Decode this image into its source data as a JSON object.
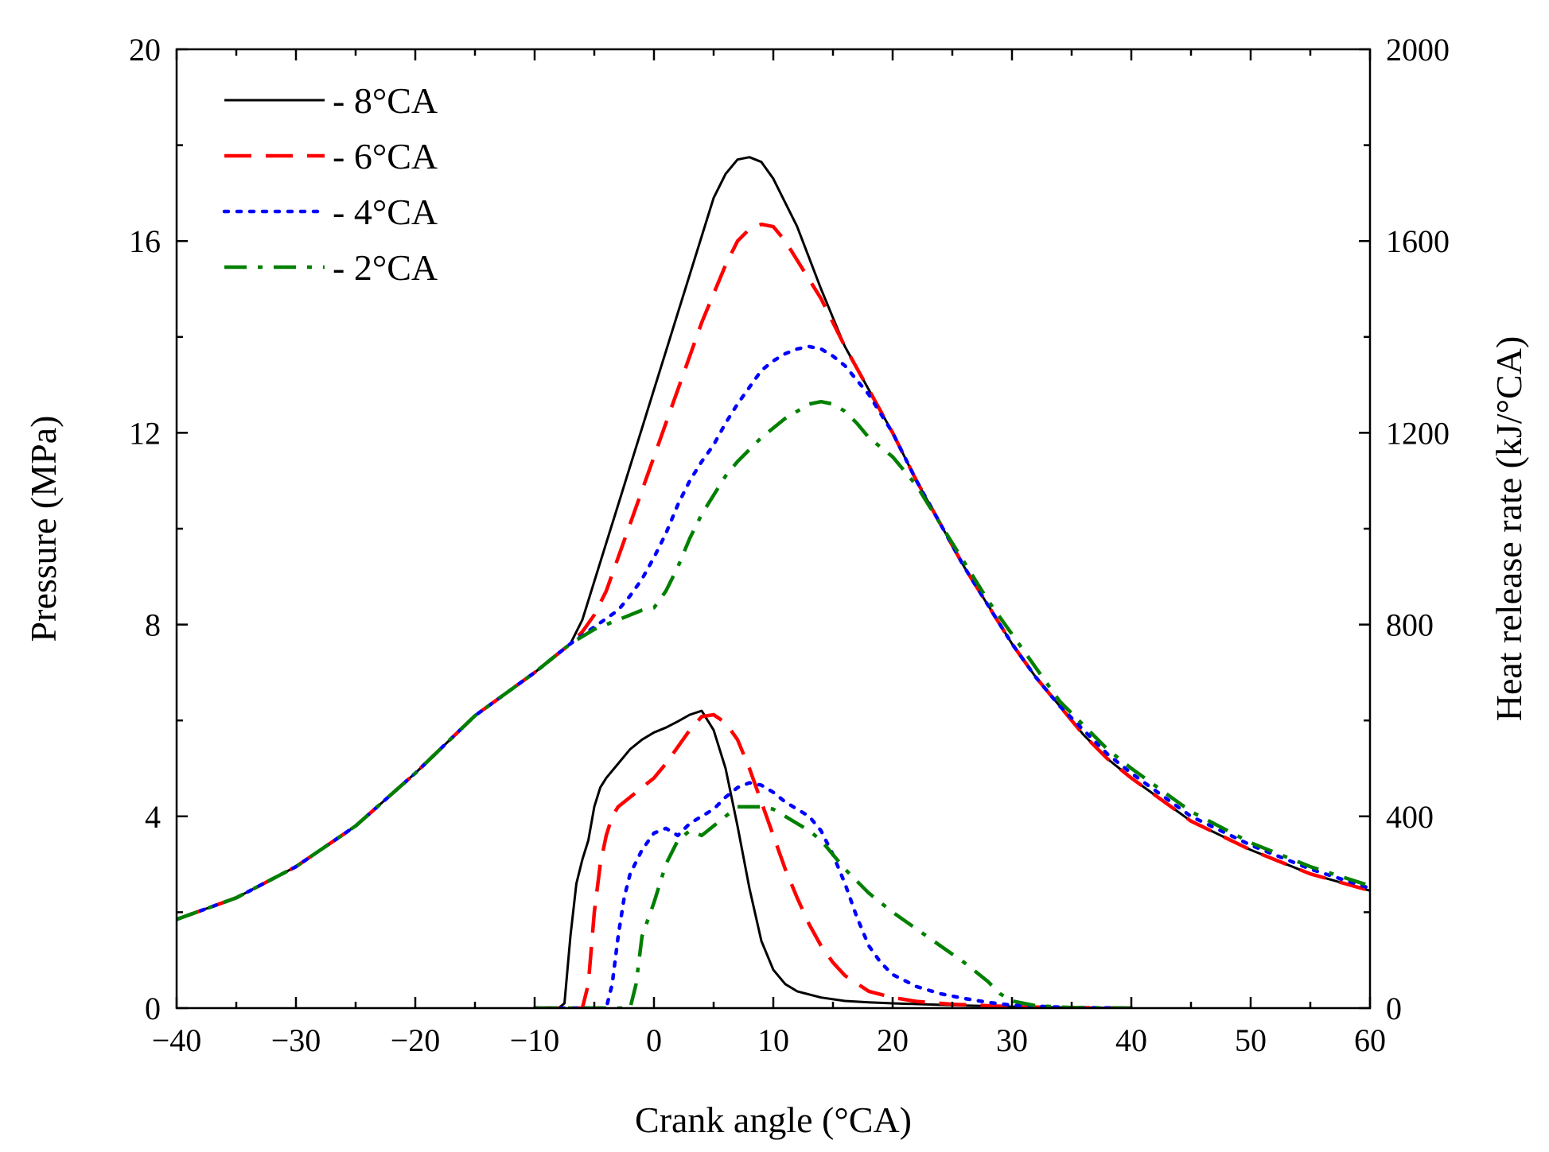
{
  "chart_data": {
    "type": "line",
    "title": "",
    "xlabel": "Crank angle (°CA)",
    "ylabel_left": "Pressure (MPa)",
    "ylabel_right": "Heat release rate (kJ/°CA)",
    "xlim": [
      -40,
      60
    ],
    "ylim_left": [
      0,
      20
    ],
    "ylim_right": [
      0,
      2000
    ],
    "x_ticks": [
      -40,
      -30,
      -20,
      -10,
      0,
      10,
      20,
      30,
      40,
      50,
      60
    ],
    "x_tick_labels": [
      "−40",
      "−30",
      "−20",
      "−10",
      "0",
      "10",
      "20",
      "30",
      "40",
      "50",
      "60"
    ],
    "y_left_ticks": [
      0,
      4,
      8,
      12,
      16,
      20
    ],
    "y_left_tick_labels": [
      "0",
      "4",
      "8",
      "12",
      "16",
      "20"
    ],
    "y_right_ticks": [
      0,
      400,
      800,
      1200,
      1600,
      2000
    ],
    "y_right_tick_labels": [
      "0",
      "400",
      "800",
      "1200",
      "1600",
      "2000"
    ],
    "grid": false,
    "legend_position": "top-left",
    "series": [
      {
        "name": "- 8°CA",
        "color": "#000000",
        "style": "solid",
        "pressure": [
          [
            -40,
            1.85
          ],
          [
            -35,
            2.3
          ],
          [
            -30,
            2.95
          ],
          [
            -25,
            3.8
          ],
          [
            -20,
            4.9
          ],
          [
            -15,
            6.1
          ],
          [
            -10,
            7.0
          ],
          [
            -7,
            7.6
          ],
          [
            -6,
            8.1
          ],
          [
            -5,
            8.9
          ],
          [
            -4,
            9.7
          ],
          [
            -3,
            10.5
          ],
          [
            -2,
            11.3
          ],
          [
            -1,
            12.1
          ],
          [
            0,
            12.9
          ],
          [
            1,
            13.7
          ],
          [
            2,
            14.5
          ],
          [
            3,
            15.3
          ],
          [
            4,
            16.1
          ],
          [
            5,
            16.9
          ],
          [
            6,
            17.4
          ],
          [
            7,
            17.7
          ],
          [
            8,
            17.75
          ],
          [
            9,
            17.65
          ],
          [
            10,
            17.3
          ],
          [
            12,
            16.3
          ],
          [
            14,
            15.0
          ],
          [
            16,
            13.8
          ],
          [
            18,
            12.9
          ],
          [
            20,
            12.0
          ],
          [
            22,
            11.0
          ],
          [
            24,
            10.1
          ],
          [
            26,
            9.2
          ],
          [
            28,
            8.4
          ],
          [
            30,
            7.6
          ],
          [
            32,
            6.9
          ],
          [
            34,
            6.3
          ],
          [
            36,
            5.7
          ],
          [
            38,
            5.2
          ],
          [
            40,
            4.8
          ],
          [
            45,
            3.9
          ],
          [
            50,
            3.3
          ],
          [
            55,
            2.8
          ],
          [
            60,
            2.45
          ]
        ],
        "heat_release": [
          [
            -8,
            0
          ],
          [
            -7.5,
            10
          ],
          [
            -7,
            150
          ],
          [
            -6.5,
            260
          ],
          [
            -6,
            310
          ],
          [
            -5.5,
            350
          ],
          [
            -5,
            420
          ],
          [
            -4.5,
            460
          ],
          [
            -4,
            480
          ],
          [
            -3,
            510
          ],
          [
            -2,
            540
          ],
          [
            -1,
            560
          ],
          [
            0,
            575
          ],
          [
            1,
            585
          ],
          [
            2,
            598
          ],
          [
            3,
            612
          ],
          [
            4,
            620
          ],
          [
            5,
            580
          ],
          [
            6,
            500
          ],
          [
            7,
            380
          ],
          [
            8,
            250
          ],
          [
            9,
            140
          ],
          [
            10,
            80
          ],
          [
            11,
            50
          ],
          [
            12,
            35
          ],
          [
            14,
            22
          ],
          [
            16,
            15
          ],
          [
            18,
            12
          ],
          [
            20,
            10
          ],
          [
            25,
            6
          ],
          [
            30,
            3
          ],
          [
            35,
            1
          ],
          [
            40,
            0
          ]
        ]
      },
      {
        "name": "- 6°CA",
        "color": "#ff0000",
        "style": "dashed",
        "pressure": [
          [
            -40,
            1.85
          ],
          [
            -35,
            2.3
          ],
          [
            -30,
            2.95
          ],
          [
            -25,
            3.8
          ],
          [
            -20,
            4.9
          ],
          [
            -15,
            6.1
          ],
          [
            -10,
            7.0
          ],
          [
            -7,
            7.6
          ],
          [
            -6,
            7.85
          ],
          [
            -5,
            8.2
          ],
          [
            -4,
            8.7
          ],
          [
            -3,
            9.4
          ],
          [
            -2,
            10.1
          ],
          [
            -1,
            10.8
          ],
          [
            0,
            11.5
          ],
          [
            1,
            12.2
          ],
          [
            2,
            12.9
          ],
          [
            3,
            13.6
          ],
          [
            4,
            14.3
          ],
          [
            5,
            14.9
          ],
          [
            6,
            15.5
          ],
          [
            7,
            16.0
          ],
          [
            8,
            16.25
          ],
          [
            9,
            16.35
          ],
          [
            10,
            16.3
          ],
          [
            11,
            16.0
          ],
          [
            12,
            15.6
          ],
          [
            14,
            14.8
          ],
          [
            16,
            13.8
          ],
          [
            18,
            12.9
          ],
          [
            20,
            12.0
          ],
          [
            22,
            11.0
          ],
          [
            24,
            10.1
          ],
          [
            26,
            9.2
          ],
          [
            28,
            8.4
          ],
          [
            30,
            7.6
          ],
          [
            32,
            6.9
          ],
          [
            34,
            6.3
          ],
          [
            36,
            5.7
          ],
          [
            38,
            5.2
          ],
          [
            40,
            4.8
          ],
          [
            45,
            3.9
          ],
          [
            50,
            3.3
          ],
          [
            55,
            2.8
          ],
          [
            60,
            2.45
          ]
        ],
        "heat_release": [
          [
            -10,
            0
          ],
          [
            -6,
            0
          ],
          [
            -5.5,
            50
          ],
          [
            -5,
            200
          ],
          [
            -4.5,
            300
          ],
          [
            -4,
            360
          ],
          [
            -3.5,
            400
          ],
          [
            -3,
            420
          ],
          [
            -2,
            440
          ],
          [
            -1,
            460
          ],
          [
            0,
            480
          ],
          [
            1,
            510
          ],
          [
            2,
            545
          ],
          [
            3,
            580
          ],
          [
            4,
            608
          ],
          [
            5,
            612
          ],
          [
            6,
            595
          ],
          [
            7,
            560
          ],
          [
            8,
            500
          ],
          [
            9,
            430
          ],
          [
            10,
            360
          ],
          [
            11,
            290
          ],
          [
            12,
            230
          ],
          [
            13,
            175
          ],
          [
            14,
            130
          ],
          [
            15,
            95
          ],
          [
            16,
            68
          ],
          [
            18,
            35
          ],
          [
            20,
            22
          ],
          [
            22,
            14
          ],
          [
            25,
            8
          ],
          [
            30,
            3
          ],
          [
            35,
            1
          ],
          [
            40,
            0
          ]
        ]
      },
      {
        "name": "- 4°CA",
        "color": "#0000ff",
        "style": "dotted",
        "pressure": [
          [
            -40,
            1.85
          ],
          [
            -35,
            2.3
          ],
          [
            -30,
            2.95
          ],
          [
            -25,
            3.8
          ],
          [
            -20,
            4.9
          ],
          [
            -15,
            6.1
          ],
          [
            -10,
            7.0
          ],
          [
            -7,
            7.6
          ],
          [
            -5,
            7.95
          ],
          [
            -3,
            8.3
          ],
          [
            -2,
            8.6
          ],
          [
            -1,
            8.95
          ],
          [
            0,
            9.4
          ],
          [
            1,
            9.9
          ],
          [
            2,
            10.5
          ],
          [
            3,
            11.0
          ],
          [
            4,
            11.4
          ],
          [
            5,
            11.75
          ],
          [
            6,
            12.2
          ],
          [
            7,
            12.6
          ],
          [
            8,
            12.95
          ],
          [
            9,
            13.3
          ],
          [
            10,
            13.5
          ],
          [
            11,
            13.65
          ],
          [
            12,
            13.75
          ],
          [
            13,
            13.8
          ],
          [
            14,
            13.75
          ],
          [
            15,
            13.6
          ],
          [
            16,
            13.4
          ],
          [
            17,
            13.1
          ],
          [
            18,
            12.8
          ],
          [
            20,
            12.0
          ],
          [
            22,
            11.0
          ],
          [
            24,
            10.1
          ],
          [
            26,
            9.2
          ],
          [
            28,
            8.4
          ],
          [
            30,
            7.6
          ],
          [
            32,
            6.9
          ],
          [
            34,
            6.3
          ],
          [
            36,
            5.8
          ],
          [
            38,
            5.3
          ],
          [
            40,
            4.9
          ],
          [
            45,
            4.0
          ],
          [
            50,
            3.4
          ],
          [
            55,
            2.9
          ],
          [
            60,
            2.5
          ]
        ],
        "heat_release": [
          [
            -10,
            0
          ],
          [
            -4,
            0
          ],
          [
            -3.5,
            50
          ],
          [
            -3,
            150
          ],
          [
            -2.5,
            230
          ],
          [
            -2,
            280
          ],
          [
            -1,
            330
          ],
          [
            0,
            365
          ],
          [
            1,
            375
          ],
          [
            2,
            360
          ],
          [
            3,
            385
          ],
          [
            4,
            400
          ],
          [
            5,
            415
          ],
          [
            6,
            440
          ],
          [
            7,
            460
          ],
          [
            8,
            470
          ],
          [
            9,
            465
          ],
          [
            10,
            450
          ],
          [
            11,
            430
          ],
          [
            12,
            415
          ],
          [
            13,
            400
          ],
          [
            14,
            370
          ],
          [
            15,
            320
          ],
          [
            16,
            260
          ],
          [
            17,
            190
          ],
          [
            18,
            130
          ],
          [
            19,
            95
          ],
          [
            20,
            70
          ],
          [
            22,
            45
          ],
          [
            24,
            30
          ],
          [
            26,
            20
          ],
          [
            28,
            12
          ],
          [
            30,
            6
          ],
          [
            35,
            1
          ],
          [
            40,
            0
          ]
        ]
      },
      {
        "name": "- 2°CA",
        "color": "#008000",
        "style": "dash-dot",
        "pressure": [
          [
            -40,
            1.85
          ],
          [
            -35,
            2.3
          ],
          [
            -30,
            2.95
          ],
          [
            -25,
            3.8
          ],
          [
            -20,
            4.9
          ],
          [
            -15,
            6.1
          ],
          [
            -10,
            7.0
          ],
          [
            -7,
            7.6
          ],
          [
            -5,
            7.9
          ],
          [
            -3,
            8.1
          ],
          [
            -1,
            8.3
          ],
          [
            0,
            8.35
          ],
          [
            1,
            8.7
          ],
          [
            2,
            9.2
          ],
          [
            3,
            9.8
          ],
          [
            4,
            10.3
          ],
          [
            5,
            10.7
          ],
          [
            6,
            11.1
          ],
          [
            7,
            11.4
          ],
          [
            8,
            11.65
          ],
          [
            9,
            11.9
          ],
          [
            10,
            12.1
          ],
          [
            11,
            12.3
          ],
          [
            12,
            12.45
          ],
          [
            13,
            12.6
          ],
          [
            14,
            12.65
          ],
          [
            15,
            12.6
          ],
          [
            16,
            12.45
          ],
          [
            17,
            12.2
          ],
          [
            18,
            11.9
          ],
          [
            20,
            11.5
          ],
          [
            22,
            10.9
          ],
          [
            24,
            10.1
          ],
          [
            26,
            9.3
          ],
          [
            28,
            8.5
          ],
          [
            30,
            7.8
          ],
          [
            32,
            7.1
          ],
          [
            34,
            6.4
          ],
          [
            36,
            5.9
          ],
          [
            38,
            5.4
          ],
          [
            40,
            5.0
          ],
          [
            45,
            4.1
          ],
          [
            50,
            3.45
          ],
          [
            55,
            2.95
          ],
          [
            60,
            2.55
          ]
        ],
        "heat_release": [
          [
            -10,
            0
          ],
          [
            -2,
            0
          ],
          [
            -1.5,
            50
          ],
          [
            -1,
            150
          ],
          [
            0,
            220
          ],
          [
            1,
            300
          ],
          [
            2,
            350
          ],
          [
            3,
            370
          ],
          [
            4,
            360
          ],
          [
            5,
            380
          ],
          [
            6,
            400
          ],
          [
            7,
            420
          ],
          [
            8,
            420
          ],
          [
            9,
            420
          ],
          [
            10,
            415
          ],
          [
            11,
            400
          ],
          [
            12,
            385
          ],
          [
            13,
            370
          ],
          [
            14,
            350
          ],
          [
            15,
            320
          ],
          [
            16,
            290
          ],
          [
            18,
            240
          ],
          [
            20,
            200
          ],
          [
            22,
            165
          ],
          [
            24,
            130
          ],
          [
            26,
            95
          ],
          [
            28,
            55
          ],
          [
            29,
            30
          ],
          [
            30,
            15
          ],
          [
            32,
            5
          ],
          [
            35,
            1
          ],
          [
            40,
            0
          ]
        ]
      }
    ]
  }
}
